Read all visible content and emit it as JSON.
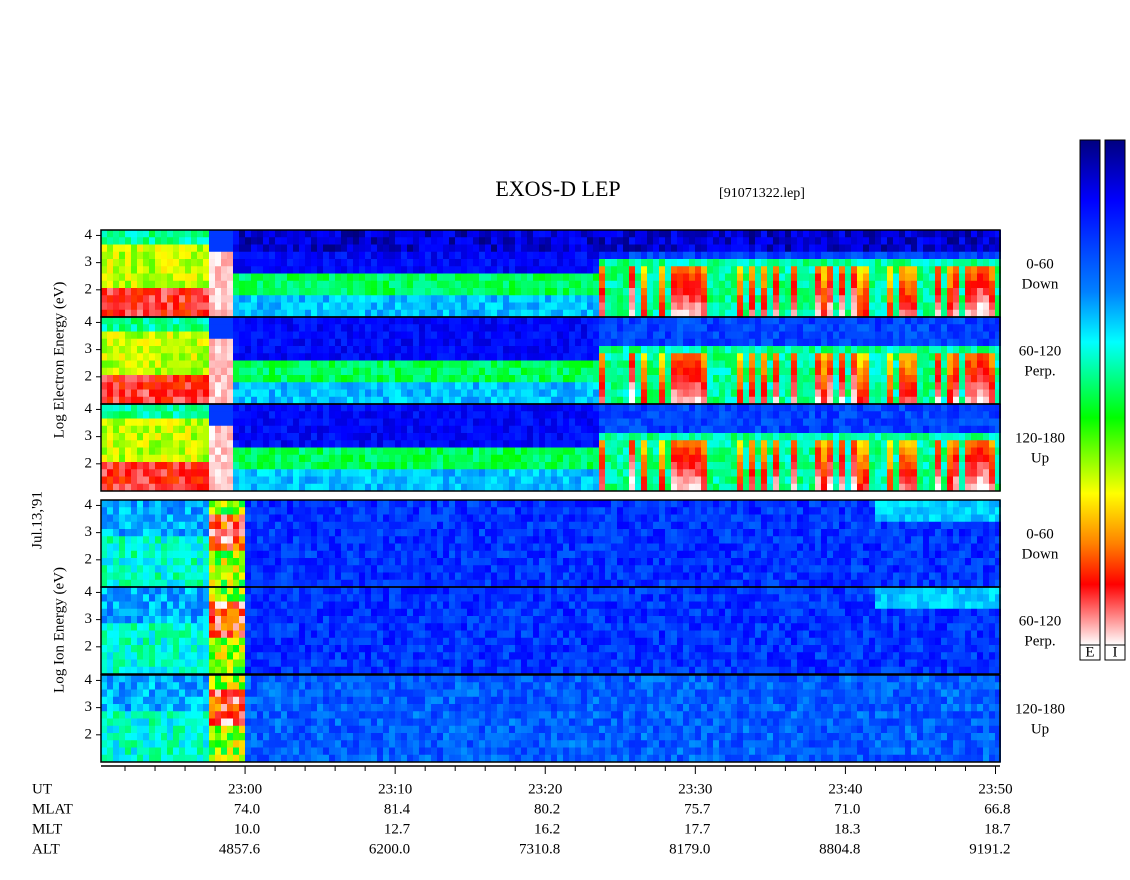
{
  "title": "EXOS-D LEP",
  "file": "[91071322.lep]",
  "date": "Jul.13,'91",
  "electron_axis": "Log Electron Energy (eV)",
  "ion_axis": "Log Ion Energy (eV)",
  "ylim": [
    1,
    4.2
  ],
  "yticks": [
    2,
    3,
    4
  ],
  "panels": [
    {
      "species": "electron",
      "angle": "0-60",
      "direction": "Down"
    },
    {
      "species": "electron",
      "angle": "60-120",
      "direction": "Perp."
    },
    {
      "species": "electron",
      "angle": "120-180",
      "direction": "Up"
    },
    {
      "species": "ion",
      "angle": "0-60",
      "direction": "Down"
    },
    {
      "species": "ion",
      "angle": "60-120",
      "direction": "Perp."
    },
    {
      "species": "ion",
      "angle": "120-180",
      "direction": "Up"
    }
  ],
  "xlim": [
    50.4,
    110.3
  ],
  "xticks": [
    {
      "value": 60,
      "label": "23:00"
    },
    {
      "value": 70,
      "label": "23:10"
    },
    {
      "value": 80,
      "label": "23:20"
    },
    {
      "value": 90,
      "label": "23:30"
    },
    {
      "value": 100,
      "label": "23:40"
    },
    {
      "value": 110,
      "label": "23:50"
    }
  ],
  "xminor_ticks": [
    52,
    54,
    56,
    58,
    62,
    64,
    66,
    68,
    72,
    74,
    76,
    78,
    82,
    84,
    86,
    88,
    92,
    94,
    96,
    98,
    102,
    104,
    106,
    108
  ],
  "footer": [
    {
      "label": "UT"
    },
    {
      "label": "MLAT",
      "values": [
        "74.0",
        "81.4",
        "80.2",
        "75.7",
        "71.0",
        "66.8"
      ]
    },
    {
      "label": "MLT",
      "values": [
        "10.0",
        "12.7",
        "16.2",
        "17.7",
        "18.3",
        "18.7"
      ]
    },
    {
      "label": "ALT",
      "values": [
        "4857.6",
        "6200.0",
        "7310.8",
        "8179.0",
        "8804.8",
        "9191.2"
      ]
    }
  ],
  "colorbars": [
    "E",
    "I"
  ]
}
